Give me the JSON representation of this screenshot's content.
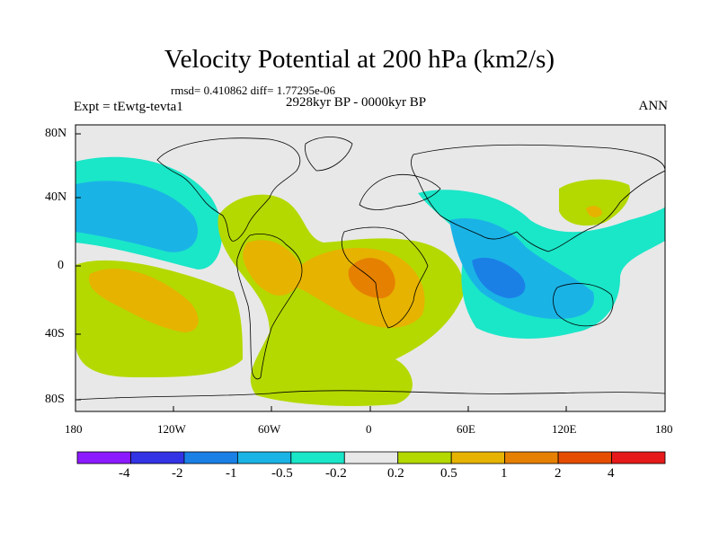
{
  "title": "Velocity Potential at 200 hPa (km2/s)",
  "stats": "rmsd= 0.410862 diff= 1.77295e-06",
  "experiment": "Expt = tEwtg-tevta1",
  "period": "2928kyr BP - 0000kyr BP",
  "season": "ANN",
  "lat_labels": [
    "80N",
    "40N",
    "0",
    "40S",
    "80S"
  ],
  "lon_labels": [
    "180",
    "120W",
    "60W",
    "0",
    "60E",
    "120E",
    "180"
  ],
  "colorbar": {
    "labels": [
      "-4",
      "-2",
      "-1",
      "-0.5",
      "-0.2",
      "0.2",
      "0.5",
      "1",
      "2",
      "4"
    ],
    "colors": [
      "#8c1aff",
      "#3333e6",
      "#1a80e6",
      "#1ab3e6",
      "#1ae6c8",
      "#e8e8e8",
      "#b3d900",
      "#e6b300",
      "#e68000",
      "#e64d00",
      "#e61a1a"
    ]
  },
  "field_colors": {
    "neutral": "#e8e8e8",
    "weak_neg": "#1ae6c8",
    "mod_neg": "#1ab3e6",
    "strong_neg": "#1a80e6",
    "weak_pos": "#b3d900",
    "mod_pos": "#e6b300",
    "strong_pos": "#e68000"
  }
}
